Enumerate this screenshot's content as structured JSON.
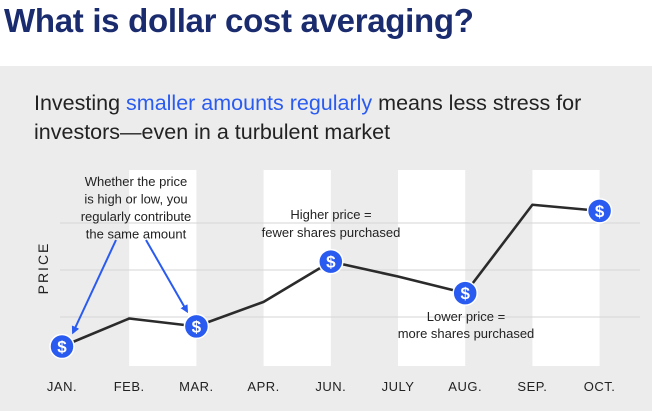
{
  "page": {
    "title": "What is dollar cost averaging?",
    "subtitle_part1": "Investing ",
    "subtitle_highlight": "smaller amounts regularly",
    "subtitle_part2": " means less stress for investors—even in a turbulent market"
  },
  "chart_data": {
    "type": "line",
    "title": "Investing smaller amounts regularly means less stress for investors—even in a turbulent market",
    "xlabel": "",
    "ylabel": "PRICE",
    "categories": [
      "JAN.",
      "FEB.",
      "MAR.",
      "APR.",
      "JUN.",
      "JULY",
      "AUG.",
      "SEP.",
      "OCT."
    ],
    "series": [
      {
        "name": "Price",
        "values": [
          1.0,
          2.6,
          2.15,
          3.55,
          5.85,
          5.0,
          4.05,
          9.1,
          8.75
        ]
      }
    ],
    "ylim": [
      0,
      10
    ],
    "purchase_points": [
      "JAN.",
      "MAR.",
      "JUN.",
      "AUG.",
      "OCT."
    ],
    "purchase_icon": "dollar-coin-icon",
    "annotations": {
      "regular_contribution": [
        "Whether the price",
        "is high or low, you",
        "regularly contribute",
        "the same amount"
      ],
      "higher_price": [
        "Higher price =",
        "fewer shares purchased"
      ],
      "lower_price": [
        "Lower price =",
        "more shares purchased"
      ]
    }
  },
  "colors": {
    "title": "#1a2b6e",
    "accent": "#2a5bf0",
    "line": "#2b2b2b",
    "panel_bg": "#ececec",
    "band": "#ffffff"
  }
}
